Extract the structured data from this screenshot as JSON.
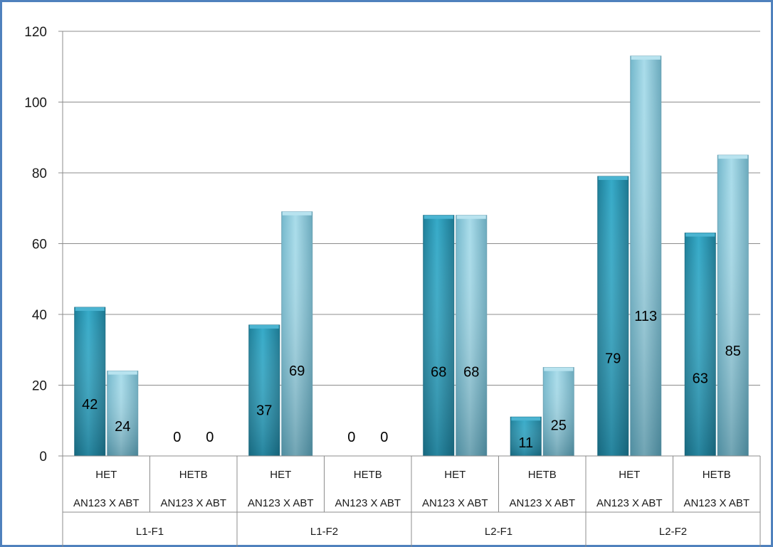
{
  "chart_data": {
    "type": "bar",
    "title": "",
    "xlabel": "",
    "ylabel": "",
    "ylim": [
      0,
      120
    ],
    "y_ticks": [
      0,
      20,
      40,
      60,
      80,
      100,
      120
    ],
    "grid": true,
    "legend": "none",
    "x_levels": {
      "outer_groups": [
        "L1-F1",
        "L1-F2",
        "L2-F1",
        "L2-F2"
      ],
      "categories": [
        {
          "label": "HET",
          "sublabel": "AN123 X ABT"
        },
        {
          "label": "HETB",
          "sublabel": "AN123 X ABT"
        },
        {
          "label": "HET",
          "sublabel": "AN123 X ABT"
        },
        {
          "label": "HETB",
          "sublabel": "AN123 X ABT"
        },
        {
          "label": "HET",
          "sublabel": "AN123 X ABT"
        },
        {
          "label": "HETB",
          "sublabel": "AN123 X ABT"
        },
        {
          "label": "HET",
          "sublabel": "AN123 X ABT"
        },
        {
          "label": "HETB",
          "sublabel": "AN123 X ABT"
        }
      ]
    },
    "series": [
      {
        "values": [
          42,
          0,
          37,
          0,
          68,
          11,
          79,
          63
        ],
        "color": "#2a9fbd"
      },
      {
        "values": [
          24,
          0,
          69,
          0,
          68,
          25,
          113,
          85
        ],
        "color": "#8ecfe2"
      }
    ],
    "data_labels": [
      [
        "42",
        "0",
        "37",
        "0",
        "68",
        "11",
        "79",
        "63"
      ],
      [
        "24",
        "0",
        "69",
        "0",
        "68",
        "25",
        "113",
        "85"
      ]
    ]
  }
}
